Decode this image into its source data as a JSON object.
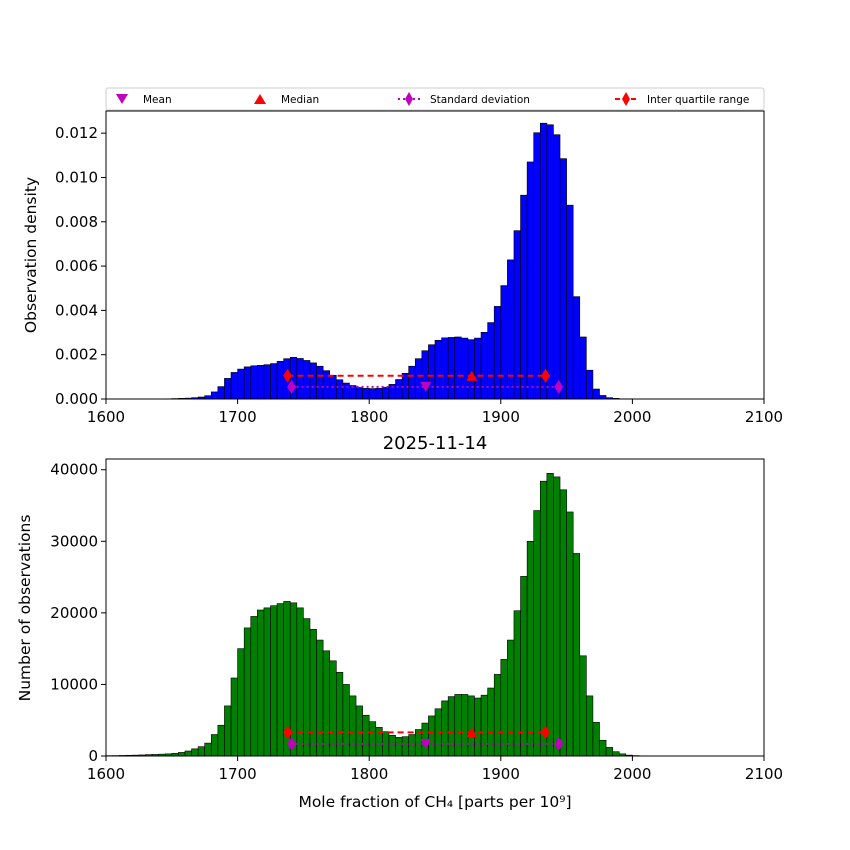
{
  "chart_data": [
    {
      "type": "bar",
      "panel": "density",
      "ylabel": "Observation density",
      "xlim": [
        1600,
        2100
      ],
      "ylim": [
        0,
        0.013
      ],
      "x_ticks": [
        "1600",
        "1700",
        "1800",
        "1900",
        "2000",
        "2100"
      ],
      "y_ticks": [
        "0.000",
        "0.002",
        "0.004",
        "0.006",
        "0.008",
        "0.010",
        "0.012"
      ],
      "bin_start": 1645,
      "bin_width": 5,
      "bar_color": "#0000ff",
      "values": [
        1e-05,
        2e-05,
        3e-05,
        4e-05,
        6e-05,
        9e-05,
        0.00015,
        0.00032,
        0.00056,
        0.00093,
        0.0012,
        0.00135,
        0.00145,
        0.0015,
        0.00152,
        0.00155,
        0.0016,
        0.0017,
        0.00182,
        0.00188,
        0.00183,
        0.00174,
        0.00163,
        0.00148,
        0.00128,
        0.00107,
        0.00087,
        0.00072,
        0.00061,
        0.00052,
        0.00048,
        0.00047,
        0.00048,
        0.00053,
        0.00066,
        0.00088,
        0.00116,
        0.00148,
        0.00182,
        0.00218,
        0.00245,
        0.00265,
        0.00276,
        0.00278,
        0.0028,
        0.00275,
        0.00268,
        0.00275,
        0.00301,
        0.00345,
        0.00418,
        0.00512,
        0.00628,
        0.0076,
        0.0092,
        0.0107,
        0.01202,
        0.01245,
        0.01238,
        0.01193,
        0.01085,
        0.00875,
        0.00462,
        0.0028,
        0.0013,
        0.00045,
        0.00016,
        6e-05,
        3e-05,
        1e-05,
        1e-05,
        0.0
      ],
      "stats": {
        "mean": {
          "x": 1843,
          "y": 0.00055
        },
        "median": {
          "x": 1878,
          "y": 0.00105
        },
        "std": {
          "x": [
            1741,
            1944
          ],
          "y": 0.00055
        },
        "iqr": {
          "x": [
            1738,
            1934
          ],
          "y": 0.00105
        }
      }
    },
    {
      "type": "bar",
      "panel": "counts",
      "title": "2025-11-14",
      "xlabel": "Mole fraction of CH₄ [parts per 10⁹]",
      "ylabel": "Number of observations",
      "xlim": [
        1600,
        2100
      ],
      "ylim": [
        0,
        41500
      ],
      "x_ticks": [
        "1600",
        "1700",
        "1800",
        "1900",
        "2000",
        "2100"
      ],
      "y_ticks": [
        "0",
        "10000",
        "20000",
        "30000",
        "40000"
      ],
      "bin_start": 1600,
      "bin_width": 5,
      "bar_color": "#008000",
      "values": [
        50,
        60,
        80,
        100,
        120,
        150,
        200,
        220,
        260,
        300,
        380,
        500,
        700,
        1000,
        1300,
        1800,
        3000,
        4300,
        7000,
        10900,
        15000,
        17900,
        19500,
        20400,
        20700,
        21000,
        21300,
        21600,
        21400,
        20700,
        19200,
        17700,
        16200,
        14700,
        13300,
        11700,
        10000,
        8400,
        7000,
        5700,
        4800,
        4000,
        3400,
        2900,
        2600,
        2700,
        3000,
        3700,
        4600,
        5600,
        6600,
        7700,
        8300,
        8600,
        8600,
        8400,
        8100,
        8500,
        9500,
        11400,
        13500,
        16200,
        20300,
        25100,
        30000,
        34300,
        38400,
        39500,
        39000,
        37200,
        34100,
        28300,
        14000,
        8400,
        4700,
        2200,
        1200,
        600,
        300,
        120,
        60,
        30
      ],
      "stats": {
        "mean": {
          "x": 1843,
          "y": 1700
        },
        "median": {
          "x": 1878,
          "y": 3300
        },
        "std": {
          "x": [
            1741,
            1944
          ],
          "y": 1700
        },
        "iqr": {
          "x": [
            1738,
            1934
          ],
          "y": 3300
        }
      }
    }
  ],
  "legend": {
    "placement": "top",
    "entries": [
      {
        "label": "Mean",
        "marker": "triangle-down",
        "color": "#bf00bf"
      },
      {
        "label": "Median",
        "marker": "triangle-up",
        "color": "#ff0000"
      },
      {
        "label": "Standard deviation",
        "marker": "diamond-dotted",
        "color": "#bf00bf"
      },
      {
        "label": "Inter quartile range",
        "marker": "diamond-dashed",
        "color": "#ff0000"
      }
    ]
  },
  "colors": {
    "mean": "#bf00bf",
    "median": "#ff0000",
    "std": "#bf00bf",
    "iqr": "#ff0000",
    "edge": "#000000"
  }
}
